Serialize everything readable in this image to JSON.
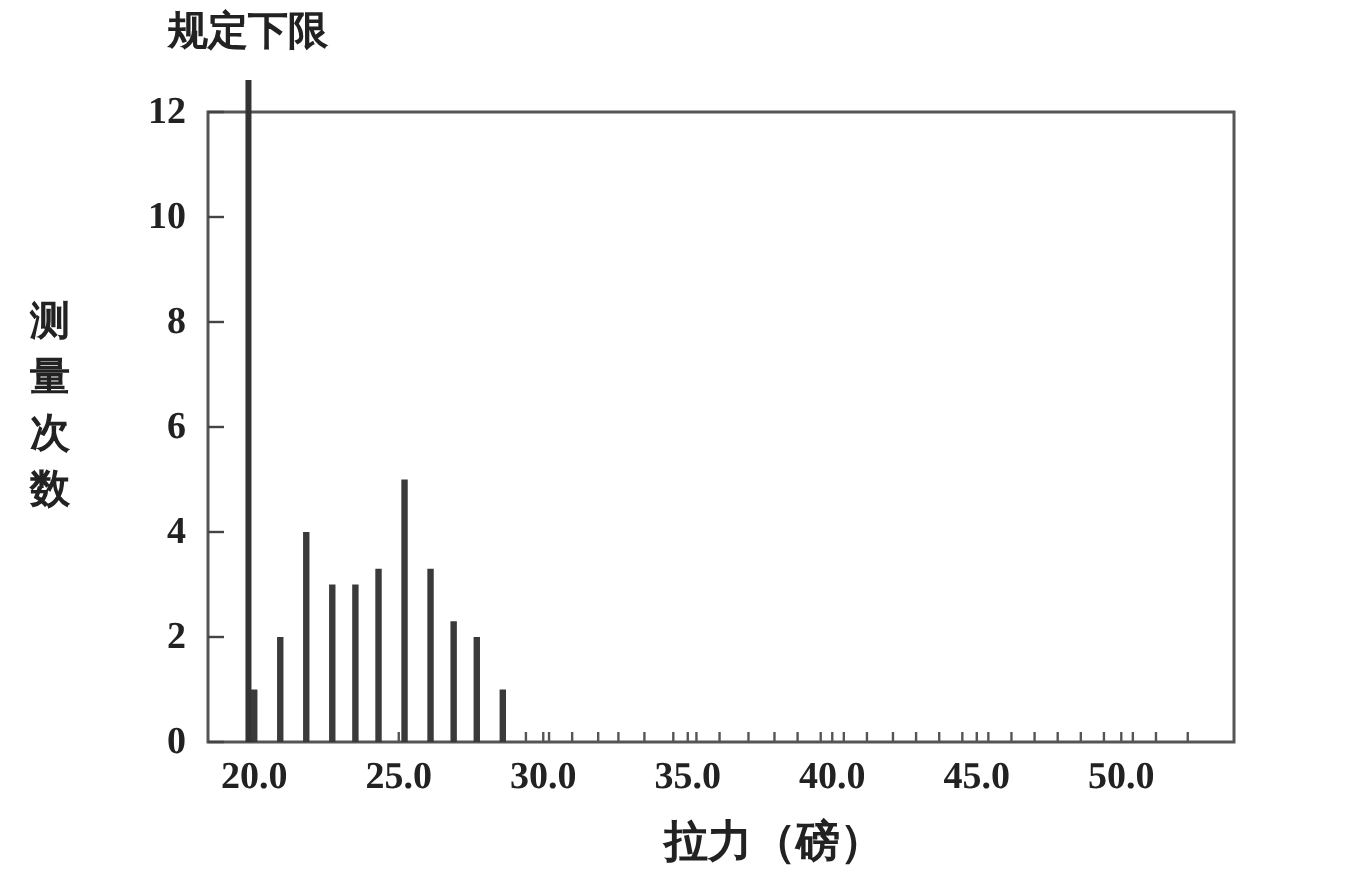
{
  "chart_data": {
    "type": "bar",
    "xlabel": "拉力（磅）",
    "ylabel": "测量次数",
    "x": [
      20.0,
      20.9,
      21.8,
      22.7,
      23.5,
      24.3,
      25.2,
      26.1,
      26.9,
      27.7,
      28.6
    ],
    "values": [
      1,
      2,
      4,
      3,
      3,
      3.3,
      5,
      3.3,
      2.3,
      2,
      1
    ],
    "color": "#3a3a3a",
    "xlim": [
      18.4,
      53.9
    ],
    "ylim": [
      0,
      12
    ],
    "xticks": [
      {
        "value": 20,
        "label": "20.0"
      },
      {
        "value": 25,
        "label": "25.0"
      },
      {
        "value": 29.4,
        "label": null
      },
      {
        "value": 30,
        "label": "30.0"
      },
      {
        "value": 30.2,
        "label": null
      },
      {
        "value": 31.0,
        "label": null
      },
      {
        "value": 31.9,
        "label": null
      },
      {
        "value": 32.6,
        "label": null
      },
      {
        "value": 33.5,
        "label": null
      },
      {
        "value": 34.5,
        "label": null
      },
      {
        "value": 35,
        "label": "35.0"
      },
      {
        "value": 35.3,
        "label": null
      },
      {
        "value": 36.1,
        "label": null
      },
      {
        "value": 37.1,
        "label": null
      },
      {
        "value": 38.0,
        "label": null
      },
      {
        "value": 38.8,
        "label": null
      },
      {
        "value": 39.6,
        "label": null
      },
      {
        "value": 40,
        "label": "40.0"
      },
      {
        "value": 40.4,
        "label": null
      },
      {
        "value": 41.2,
        "label": null
      },
      {
        "value": 42.1,
        "label": null
      },
      {
        "value": 42.9,
        "label": null
      },
      {
        "value": 43.7,
        "label": null
      },
      {
        "value": 44.5,
        "label": null
      },
      {
        "value": 45,
        "label": "45.0"
      },
      {
        "value": 45.4,
        "label": null
      },
      {
        "value": 46.2,
        "label": null
      },
      {
        "value": 47.0,
        "label": null
      },
      {
        "value": 47.8,
        "label": null
      },
      {
        "value": 48.6,
        "label": null
      },
      {
        "value": 49.4,
        "label": null
      },
      {
        "value": 50,
        "label": "50.0"
      },
      {
        "value": 50.4,
        "label": null
      },
      {
        "value": 51.2,
        "label": null
      },
      {
        "value": 52.3,
        "label": null
      }
    ],
    "yticks": [
      0,
      2,
      4,
      6,
      8,
      10,
      12
    ],
    "ref_lines": [
      {
        "axis": "x",
        "value": 19.8,
        "label": "规定下限",
        "color": "#333333"
      }
    ]
  }
}
